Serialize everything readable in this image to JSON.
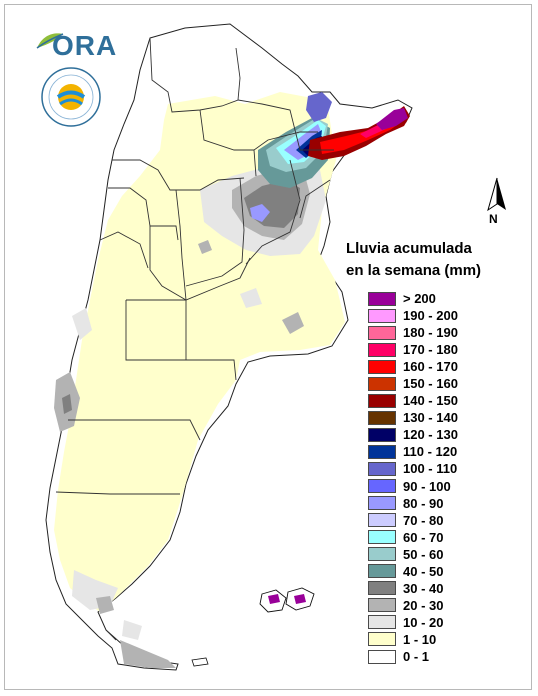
{
  "logo": {
    "text": "ORA"
  },
  "north_arrow": {
    "label": "N"
  },
  "legend": {
    "title_line1": "Lluvia acumulada",
    "title_line2": "en la semana (mm)",
    "items": [
      {
        "label": "> 200",
        "color": "#990099"
      },
      {
        "label": "190 - 200",
        "color": "#ff99ff"
      },
      {
        "label": "180 - 190",
        "color": "#ff6699"
      },
      {
        "label": "170 - 180",
        "color": "#ff0066"
      },
      {
        "label": "160 - 170",
        "color": "#ff0000"
      },
      {
        "label": "150 - 160",
        "color": "#cc3300"
      },
      {
        "label": "140 - 150",
        "color": "#990000"
      },
      {
        "label": "130 - 140",
        "color": "#663300"
      },
      {
        "label": "120 - 130",
        "color": "#000066"
      },
      {
        "label": "110 - 120",
        "color": "#003399"
      },
      {
        "label": "100 - 110",
        "color": "#6666cc"
      },
      {
        "label": "90 - 100",
        "color": "#6666ff"
      },
      {
        "label": "80 - 90",
        "color": "#9999ff"
      },
      {
        "label": "70 - 80",
        "color": "#ccccff"
      },
      {
        "label": "60 - 70",
        "color": "#99ffff"
      },
      {
        "label": "50 - 60",
        "color": "#99cccc"
      },
      {
        "label": "40 - 50",
        "color": "#669999"
      },
      {
        "label": "30 - 40",
        "color": "#808080"
      },
      {
        "label": "20 - 30",
        "color": "#b3b3b3"
      },
      {
        "label": "10 - 20",
        "color": "#e6e6e6"
      },
      {
        "label": "1 - 10",
        "color": "#ffffcc"
      },
      {
        "label": "0 - 1",
        "color": "#ffffff"
      }
    ]
  },
  "colors": {
    "province_border": "#333333",
    "frame": "#b8b8b8"
  }
}
